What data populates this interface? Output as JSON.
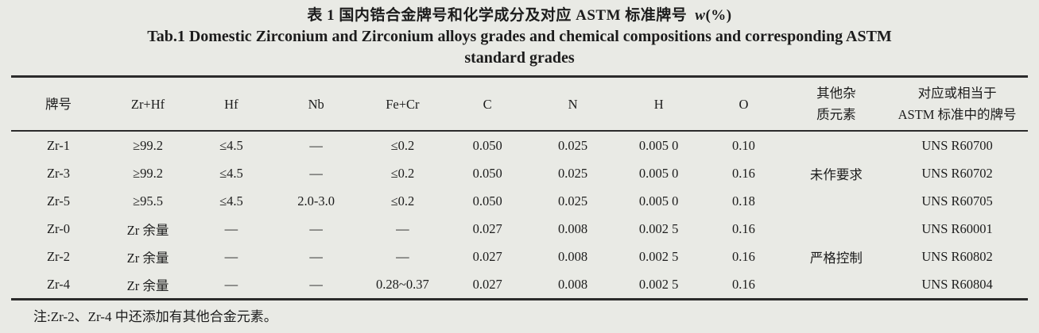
{
  "page": {
    "background": "#e9eae5",
    "text_color": "#1c1c1c",
    "rule_color": "#2b2b2b"
  },
  "title": {
    "zh": "表 1 国内锆合金牌号和化学成分及对应 ASTM 标准牌号",
    "unit_symbol": "w",
    "unit_rest": "(%)",
    "en_line1": "Tab.1 Domestic Zirconium and Zirconium alloys grades and chemical compositions and corresponding ASTM",
    "en_line2": "standard grades"
  },
  "chart_data": {
    "type": "table",
    "col_widths_percent": [
      9.3,
      8.3,
      8.1,
      8.6,
      8.4,
      8.3,
      8.5,
      8.4,
      8.3,
      9.9,
      13.9
    ],
    "headers": [
      "牌号",
      "Zr+Hf",
      "Hf",
      "Nb",
      "Fe+Cr",
      "C",
      "N",
      "H",
      "O",
      "其他杂\n质元素",
      "对应或相当于\nASTM 标准中的牌号"
    ],
    "rows": [
      [
        "Zr-1",
        "≥99.2",
        "≤4.5",
        "—",
        "≤0.2",
        "0.050",
        "0.025",
        "0.005 0",
        "0.10",
        "",
        "UNS R60700"
      ],
      [
        "Zr-3",
        "≥99.2",
        "≤4.5",
        "—",
        "≤0.2",
        "0.050",
        "0.025",
        "0.005 0",
        "0.16",
        "未作要求",
        "UNS R60702"
      ],
      [
        "Zr-5",
        "≥95.5",
        "≤4.5",
        "2.0-3.0",
        "≤0.2",
        "0.050",
        "0.025",
        "0.005 0",
        "0.18",
        "",
        "UNS R60705"
      ],
      [
        "Zr-0",
        "Zr 余量",
        "—",
        "—",
        "—",
        "0.027",
        "0.008",
        "0.002 5",
        "0.16",
        "",
        "UNS R60001"
      ],
      [
        "Zr-2",
        "Zr 余量",
        "—",
        "—",
        "—",
        "0.027",
        "0.008",
        "0.002 5",
        "0.16",
        "严格控制",
        "UNS R60802"
      ],
      [
        "Zr-4",
        "Zr 余量",
        "—",
        "—",
        "0.28~0.37",
        "0.027",
        "0.008",
        "0.002 5",
        "0.16",
        "",
        "UNS R60804"
      ]
    ]
  },
  "note": "注:Zr-2、Zr-4 中还添加有其他合金元素。"
}
